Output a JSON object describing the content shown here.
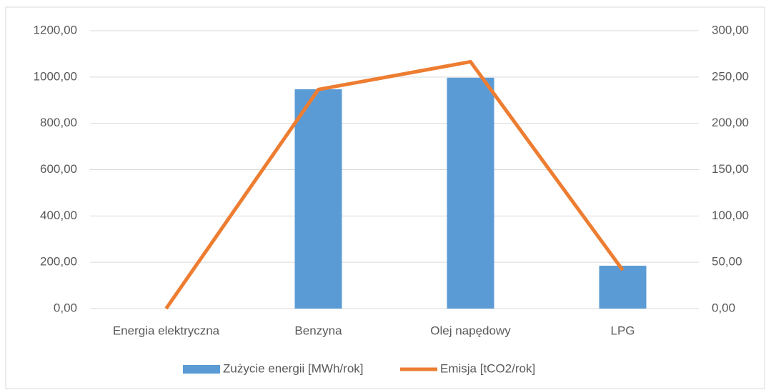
{
  "chart_data": {
    "type": "bar-line",
    "categories": [
      "Energia elektryczna",
      "Benzyna",
      "Olej napędowy",
      "LPG"
    ],
    "series": [
      {
        "name": "Zużycie energii [MWh/rok]",
        "color": "#5b9bd5",
        "type": "bar",
        "values": [
          0,
          947,
          997,
          185
        ]
      },
      {
        "name": "Emisja [tCO2/rok]",
        "color": "#ed7d31",
        "type": "line",
        "axis": "y2",
        "values": [
          0,
          236.5,
          266.5,
          41.5
        ]
      }
    ],
    "ylim": [
      0,
      1200
    ],
    "yticks": [
      {
        "value": 0,
        "label": "0,00"
      },
      {
        "value": 200,
        "label": "200,00"
      },
      {
        "value": 400,
        "label": "400,00"
      },
      {
        "value": 600,
        "label": "600,00"
      },
      {
        "value": 800,
        "label": "800,00"
      },
      {
        "value": 1000,
        "label": "1000,00"
      },
      {
        "value": 1200,
        "label": "1200,00"
      }
    ],
    "y2lim": [
      0,
      300
    ],
    "y2ticks": [
      {
        "value": 0,
        "label": "0,00"
      },
      {
        "value": 50,
        "label": "50,00"
      },
      {
        "value": 100,
        "label": "100,00"
      },
      {
        "value": 150,
        "label": "150,00"
      },
      {
        "value": 200,
        "label": "200,00"
      },
      {
        "value": 250,
        "label": "250,00"
      },
      {
        "value": 300,
        "label": "300,00"
      }
    ],
    "grid": true,
    "legend": "bottom"
  }
}
